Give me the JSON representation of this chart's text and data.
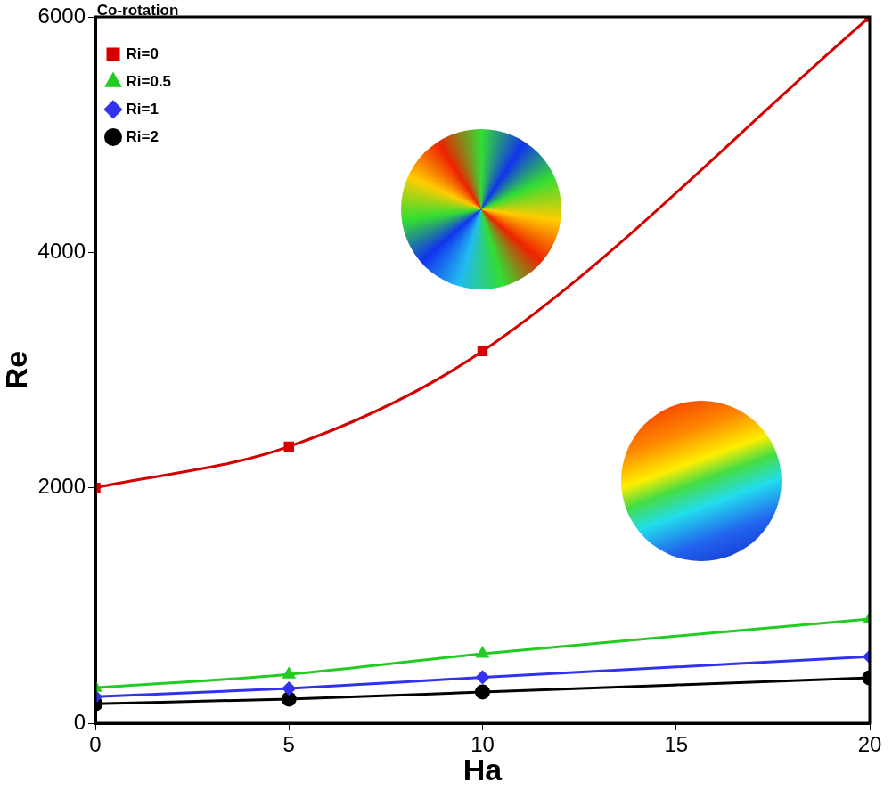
{
  "chart_data": {
    "type": "line",
    "xlabel": "Ha",
    "ylabel": "Re",
    "legend_title": "Co-rotation",
    "legend": "top left",
    "grid": false,
    "x": [
      0,
      5,
      10,
      20
    ],
    "xlim": [
      0,
      20
    ],
    "xticks": [
      0,
      5,
      10,
      15,
      20
    ],
    "ylim": [
      0,
      6000
    ],
    "yticks": [
      0,
      2000,
      4000,
      6000
    ],
    "series": [
      {
        "name": "Ri=0",
        "color": "#d40000",
        "marker": "square",
        "values": [
          2000,
          2350,
          3160,
          6000
        ]
      },
      {
        "name": "Ri=0.5",
        "color": "#22cc22",
        "marker": "triangle",
        "values": [
          300,
          415,
          590,
          885
        ]
      },
      {
        "name": "Ri=1",
        "color": "#3333ee",
        "marker": "diamond",
        "values": [
          225,
          295,
          390,
          565
        ]
      },
      {
        "name": "Ri=2",
        "color": "#000000",
        "marker": "circle",
        "values": [
          165,
          205,
          265,
          385
        ]
      }
    ]
  }
}
